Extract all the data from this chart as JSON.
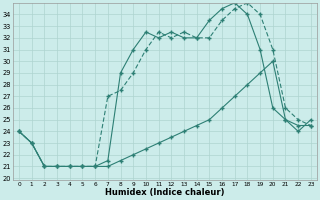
{
  "bg_color": "#ccecea",
  "line_color": "#2d7f74",
  "xlabel": "Humidex (Indice chaleur)",
  "xlim": [
    -0.5,
    23.5
  ],
  "ylim": [
    19.8,
    35.0
  ],
  "xticks": [
    0,
    1,
    2,
    3,
    4,
    5,
    6,
    7,
    8,
    9,
    10,
    11,
    12,
    13,
    14,
    15,
    16,
    17,
    18,
    19,
    20,
    21,
    22,
    23
  ],
  "yticks": [
    20,
    21,
    22,
    23,
    24,
    25,
    26,
    27,
    28,
    29,
    30,
    31,
    32,
    33,
    34
  ],
  "line1_x": [
    0,
    1,
    2,
    3,
    4,
    5,
    6,
    7,
    8,
    9,
    10,
    11,
    12,
    13,
    14,
    15,
    16,
    17,
    18,
    19,
    20,
    21,
    22,
    23
  ],
  "line1_y": [
    24.0,
    23.0,
    21.0,
    21.0,
    21.0,
    21.0,
    21.0,
    21.5,
    29.0,
    31.0,
    32.5,
    32.0,
    32.5,
    32.0,
    32.0,
    33.5,
    34.5,
    35.0,
    34.0,
    31.0,
    26.0,
    25.0,
    24.5,
    24.5
  ],
  "line2_x": [
    0,
    1,
    2,
    3,
    4,
    5,
    6,
    7,
    8,
    9,
    10,
    11,
    12,
    13,
    14,
    15,
    16,
    17,
    18,
    19,
    20,
    21,
    22,
    23
  ],
  "line2_y": [
    24.0,
    23.0,
    21.0,
    21.0,
    21.0,
    21.0,
    21.0,
    27.0,
    27.5,
    29.0,
    31.0,
    32.5,
    32.0,
    32.5,
    32.0,
    32.0,
    33.5,
    34.5,
    35.0,
    34.0,
    31.0,
    26.0,
    25.0,
    24.5
  ],
  "line3_x": [
    0,
    1,
    2,
    3,
    4,
    5,
    6,
    7,
    8,
    9,
    10,
    11,
    12,
    13,
    14,
    15,
    16,
    17,
    18,
    19,
    20,
    21,
    22,
    23
  ],
  "line3_y": [
    24.0,
    23.0,
    21.0,
    21.0,
    21.0,
    21.0,
    21.0,
    21.0,
    21.5,
    22.0,
    22.5,
    23.0,
    23.5,
    24.0,
    24.5,
    25.0,
    26.0,
    27.0,
    28.0,
    29.0,
    30.0,
    25.0,
    24.0,
    25.0
  ]
}
